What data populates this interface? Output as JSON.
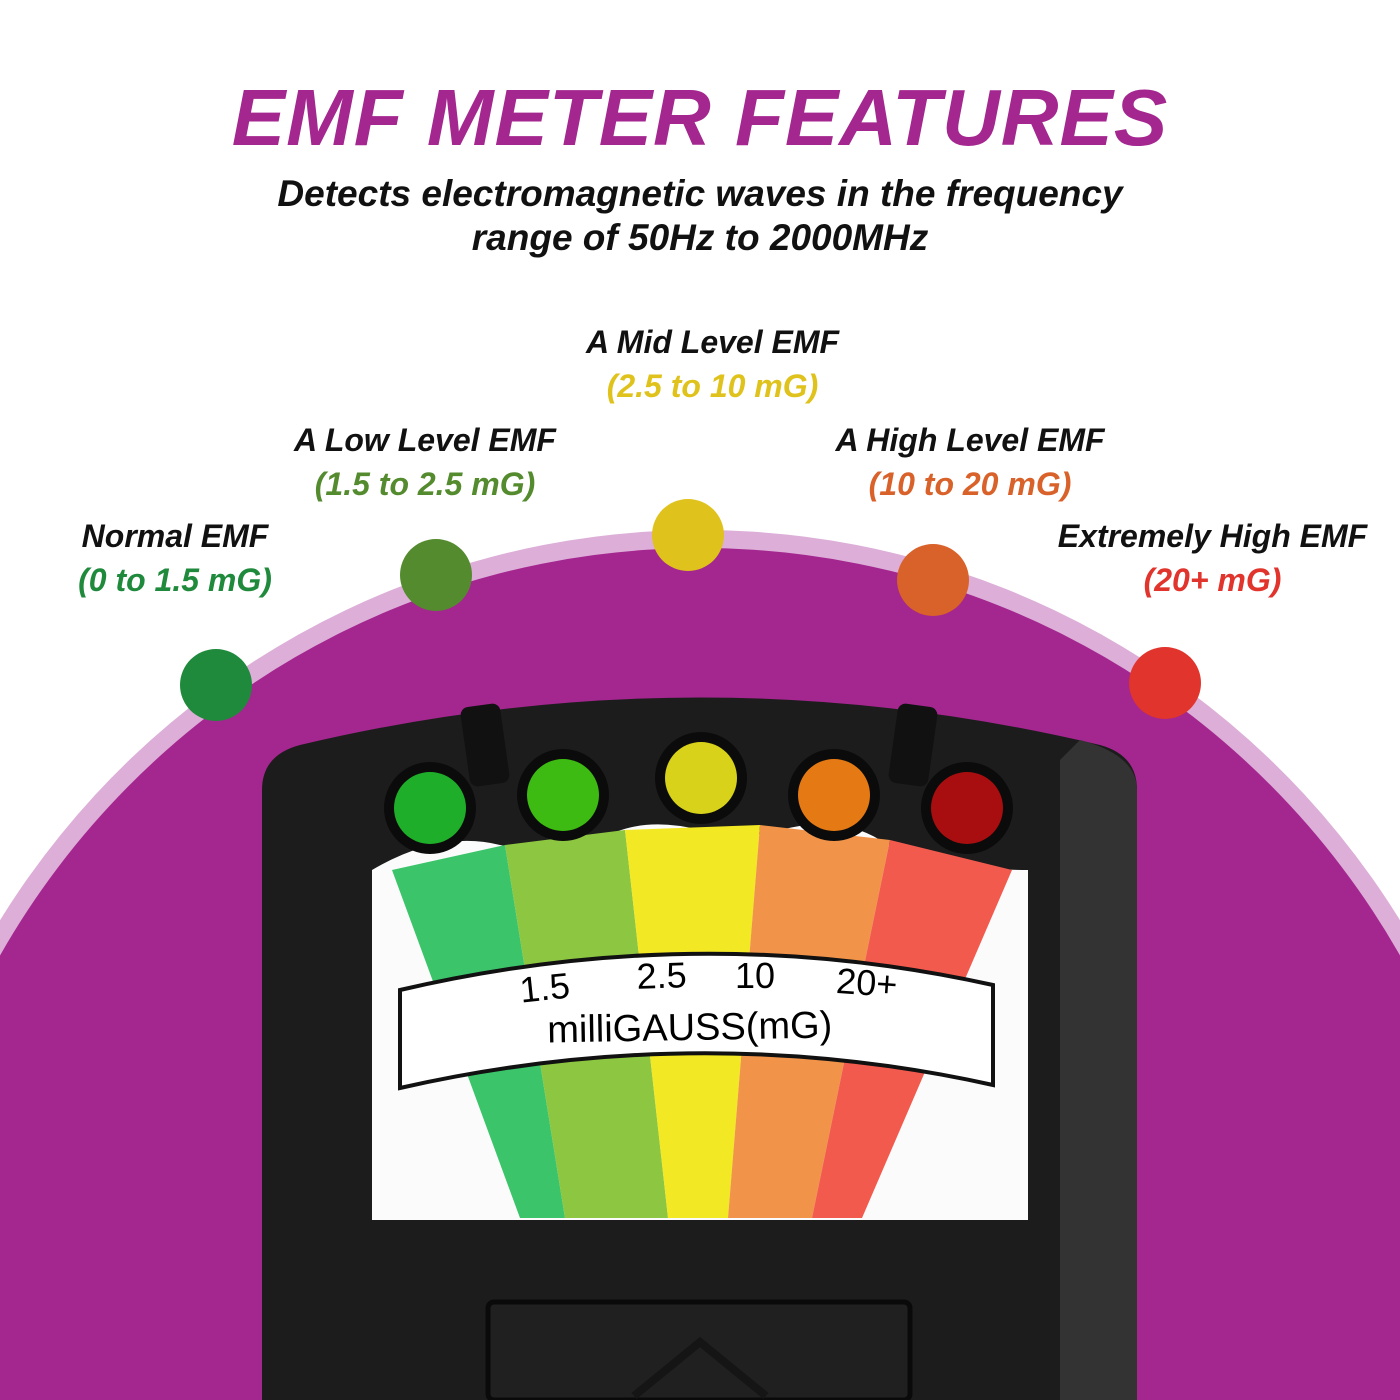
{
  "header": {
    "title": "EMF METER FEATURES",
    "subtitle_line1": "Detects electromagnetic waves in the frequency",
    "subtitle_line2": "range of 50Hz to 2000MHz"
  },
  "levels": [
    {
      "name": "Normal EMF",
      "range": "(0 to 1.5 mG)",
      "color": "#1f8a3c"
    },
    {
      "name": "A Low Level EMF",
      "range": "(1.5 to 2.5 mG)",
      "color": "#558b2f"
    },
    {
      "name": "A Mid Level EMF",
      "range": "(2.5 to 10 mG)",
      "color": "#e0c21c"
    },
    {
      "name": "A High Level EMF",
      "range": "(10 to 20 mG)",
      "color": "#d9612a"
    },
    {
      "name": "Extremely High EMF",
      "range": "(20+ mG)",
      "color": "#e0342c"
    }
  ],
  "meter": {
    "scale_ticks": [
      "1.5",
      "2.5",
      "10",
      "20+"
    ],
    "unit": "milliGAUSS(mG)"
  },
  "colors": {
    "accent": "#a4268f",
    "ring": "#dcaed8"
  }
}
